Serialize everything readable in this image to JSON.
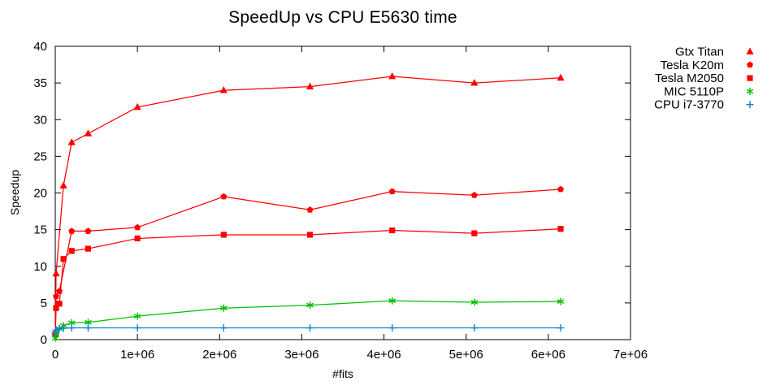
{
  "chart_data": {
    "type": "line",
    "title": "SpeedUp vs CPU E5630 time",
    "xlabel": "#fits",
    "ylabel": "Speedup",
    "xlim": [
      0,
      7000000
    ],
    "ylim": [
      0,
      40
    ],
    "grid": false,
    "legend_position": "outside-top-right",
    "background_color": "#ffffff",
    "axis_color": "#000000",
    "xticks": {
      "values": [
        0,
        1000000,
        2000000,
        3000000,
        4000000,
        5000000,
        6000000,
        7000000
      ],
      "labels": [
        "0",
        "1e+06",
        "2e+06",
        "3e+06",
        "4e+06",
        "5e+06",
        "6e+06",
        "7e+06"
      ]
    },
    "yticks": {
      "values": [
        0,
        5,
        10,
        15,
        20,
        25,
        30,
        35,
        40
      ],
      "labels": [
        "0",
        "5",
        "10",
        "15",
        "20",
        "25",
        "30",
        "35",
        "40"
      ]
    },
    "series": [
      {
        "name": "Gtx Titan",
        "color": "#ff0000",
        "marker": "triangle",
        "points": [
          [
            1000,
            1.0
          ],
          [
            10000,
            9.0
          ],
          [
            100000,
            21.0
          ],
          [
            200000,
            26.9
          ],
          [
            400000,
            28.1
          ],
          [
            1000000,
            31.7
          ],
          [
            2050000,
            34.0
          ],
          [
            3100000,
            34.5
          ],
          [
            4100000,
            35.9
          ],
          [
            5100000,
            35.0
          ],
          [
            6150000,
            35.7
          ]
        ]
      },
      {
        "name": "Tesla K20m",
        "color": "#ff0000",
        "marker": "pentagon",
        "points": [
          [
            1000,
            0.8
          ],
          [
            10000,
            5.9
          ],
          [
            50000,
            6.6
          ],
          [
            200000,
            14.8
          ],
          [
            400000,
            14.8
          ],
          [
            1000000,
            15.3
          ],
          [
            2050000,
            19.5
          ],
          [
            3100000,
            17.7
          ],
          [
            4100000,
            20.2
          ],
          [
            5100000,
            19.7
          ],
          [
            6150000,
            20.5
          ]
        ]
      },
      {
        "name": "Tesla M2050",
        "color": "#ff0000",
        "marker": "square",
        "points": [
          [
            1000,
            0.7
          ],
          [
            10000,
            4.3
          ],
          [
            50000,
            4.9
          ],
          [
            100000,
            11.0
          ],
          [
            200000,
            12.1
          ],
          [
            400000,
            12.4
          ],
          [
            1000000,
            13.8
          ],
          [
            2050000,
            14.3
          ],
          [
            3100000,
            14.3
          ],
          [
            4100000,
            14.9
          ],
          [
            5100000,
            14.5
          ],
          [
            6150000,
            15.1
          ]
        ]
      },
      {
        "name": "MIC 5110P",
        "color": "#00c000",
        "marker": "asterisk",
        "points": [
          [
            1000,
            0.2
          ],
          [
            10000,
            0.7
          ],
          [
            50000,
            1.5
          ],
          [
            100000,
            1.9
          ],
          [
            200000,
            2.3
          ],
          [
            400000,
            2.35
          ],
          [
            1000000,
            3.2
          ],
          [
            2050000,
            4.3
          ],
          [
            3100000,
            4.7
          ],
          [
            4100000,
            5.3
          ],
          [
            5100000,
            5.1
          ],
          [
            6150000,
            5.2
          ]
        ]
      },
      {
        "name": "CPU i7-3770",
        "color": "#0d82d6",
        "marker": "plus",
        "points": [
          [
            1000,
            1.0
          ],
          [
            10000,
            1.3
          ],
          [
            50000,
            1.5
          ],
          [
            100000,
            1.55
          ],
          [
            200000,
            1.6
          ],
          [
            400000,
            1.6
          ],
          [
            1000000,
            1.6
          ],
          [
            2050000,
            1.6
          ],
          [
            3100000,
            1.6
          ],
          [
            4100000,
            1.6
          ],
          [
            5100000,
            1.6
          ],
          [
            6150000,
            1.6
          ]
        ]
      }
    ]
  }
}
